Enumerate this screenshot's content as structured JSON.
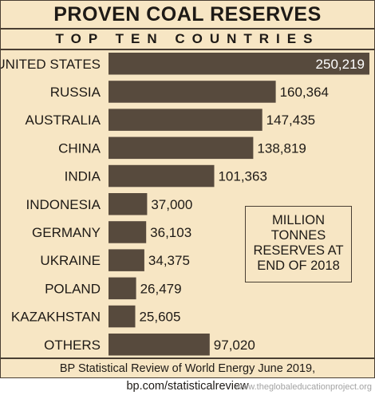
{
  "chart_data": {
    "type": "bar",
    "orientation": "horizontal",
    "title": "PROVEN COAL RESERVES",
    "subtitle": "TOP TEN COUNTRIES",
    "categories": [
      "UNITED STATES",
      "RUSSIA",
      "AUSTRALIA",
      "CHINA",
      "INDIA",
      "INDONESIA",
      "GERMANY",
      "UKRAINE",
      "POLAND",
      "KAZAKHSTAN",
      "OTHERS"
    ],
    "values": [
      250219,
      160364,
      147435,
      138819,
      101363,
      37000,
      36103,
      34375,
      26479,
      25605,
      97020
    ],
    "value_labels": [
      "250,219",
      "160,364",
      "147,435",
      "138,819",
      "101,363",
      "37,000",
      "36,103",
      "34,375",
      "26,479",
      "25,605",
      "97,020"
    ],
    "xlim": [
      0,
      250219
    ],
    "grid": false,
    "annotation": "MILLION\nTONNES\nRESERVES AT\nEND OF 2018",
    "source": "BP Statistical Review of World Energy June 2019, bp.com/statisticalreview"
  },
  "credit": "www.theglobaleducationproject.org",
  "colors": {
    "background": "#f7e6c4",
    "bar": "#574a3d",
    "text": "#1e1a16",
    "value_on_bar": "#ffffff",
    "credit": "#a3a3a3"
  }
}
